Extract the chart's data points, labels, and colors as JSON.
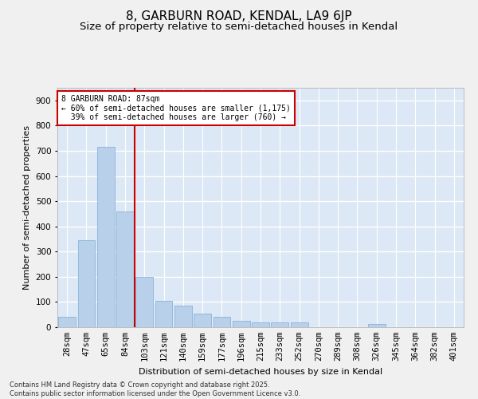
{
  "title": "8, GARBURN ROAD, KENDAL, LA9 6JP",
  "subtitle": "Size of property relative to semi-detached houses in Kendal",
  "xlabel": "Distribution of semi-detached houses by size in Kendal",
  "ylabel": "Number of semi-detached properties",
  "categories": [
    "28sqm",
    "47sqm",
    "65sqm",
    "84sqm",
    "103sqm",
    "121sqm",
    "140sqm",
    "159sqm",
    "177sqm",
    "196sqm",
    "215sqm",
    "233sqm",
    "252sqm",
    "270sqm",
    "289sqm",
    "308sqm",
    "326sqm",
    "345sqm",
    "364sqm",
    "382sqm",
    "401sqm"
  ],
  "values": [
    42,
    345,
    715,
    460,
    200,
    105,
    85,
    55,
    40,
    25,
    20,
    18,
    18,
    0,
    0,
    0,
    12,
    0,
    0,
    0,
    0
  ],
  "bar_color": "#b8d0ea",
  "bar_edge_color": "#7aadd4",
  "vline_color": "#cc0000",
  "annotation_text": "8 GARBURN ROAD: 87sqm\n← 60% of semi-detached houses are smaller (1,175)\n  39% of semi-detached houses are larger (760) →",
  "annotation_box_color": "#cc0000",
  "background_color": "#dce8f5",
  "grid_color": "#ffffff",
  "ylim": [
    0,
    950
  ],
  "yticks": [
    0,
    100,
    200,
    300,
    400,
    500,
    600,
    700,
    800,
    900
  ],
  "footer_text": "Contains HM Land Registry data © Crown copyright and database right 2025.\nContains public sector information licensed under the Open Government Licence v3.0.",
  "title_fontsize": 11,
  "subtitle_fontsize": 9.5,
  "axis_label_fontsize": 8,
  "tick_fontsize": 7.5,
  "footer_fontsize": 6
}
